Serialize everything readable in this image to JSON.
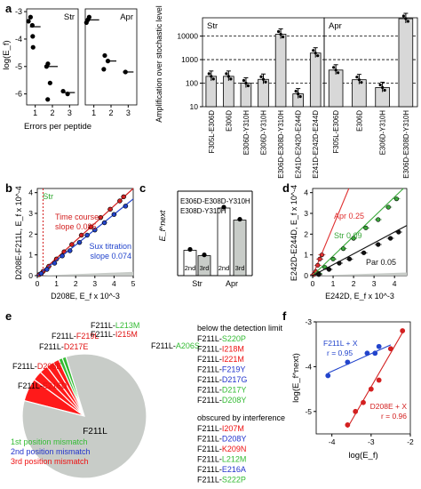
{
  "panel_letters": [
    "a",
    "b",
    "c",
    "d",
    "e",
    "f"
  ],
  "chart_data": [
    {
      "id": "a-left",
      "type": "scatter",
      "ylabel": "log(E_f)",
      "xlabel": "Errors per peptide",
      "subpanels": [
        {
          "label": "Str",
          "xticks": [
            "1",
            "2",
            "3"
          ],
          "points": [
            [
              1,
              -3.2
            ],
            [
              1,
              -3.35
            ],
            [
              1,
              -3.5
            ],
            [
              1,
              -3.9
            ],
            [
              1,
              -4.3
            ],
            [
              2,
              -4.9
            ],
            [
              2,
              -5.0
            ],
            [
              2,
              -5.6
            ],
            [
              2,
              -6.2
            ],
            [
              3,
              -5.9
            ],
            [
              3,
              -6.0
            ]
          ],
          "means": [
            [
              1,
              -3.55
            ],
            [
              2,
              -5.0
            ],
            [
              3,
              -5.95
            ]
          ]
        },
        {
          "label": "Apr",
          "xticks": [
            "1",
            "2",
            "3"
          ],
          "points": [
            [
              1,
              -3.2
            ],
            [
              1,
              -3.3
            ],
            [
              1,
              -3.4
            ],
            [
              2,
              -4.6
            ],
            [
              2,
              -4.8
            ],
            [
              2,
              -5.1
            ],
            [
              3,
              -5.2
            ]
          ],
          "means": [
            [
              1,
              -3.3
            ],
            [
              2,
              -4.8
            ],
            [
              3,
              -5.2
            ]
          ]
        }
      ],
      "ylim": [
        -6.4,
        -2.9
      ],
      "yticks": [
        "-3",
        "-4",
        "-5",
        "-6"
      ]
    },
    {
      "id": "a-right",
      "type": "bar",
      "scale": "log",
      "ylabel": "Amplification over stochastic level",
      "ylim": [
        10,
        60000
      ],
      "yticks": [
        "10",
        "100",
        "1000",
        "10000"
      ],
      "dashed_lines": [
        100,
        1000,
        10000
      ],
      "groups": [
        {
          "label": "Str",
          "categories": [
            "F305L-E306D",
            "E306D",
            "E306D-Y310H",
            "E306D-Y310H",
            "E306D-E308D-Y310H",
            "E241D-E242D-E244D",
            "E241D-E242D-E244D"
          ],
          "values": [
            195,
            195,
            100,
            145,
            12000,
            35,
            1900
          ]
        },
        {
          "label": "Apr",
          "categories": [
            "F305L-E306D",
            "E306D",
            "E306D-Y310H",
            "E306D-E308D-Y310H"
          ],
          "values": [
            360,
            140,
            65,
            55000
          ]
        }
      ],
      "xticks": [
        "F305L-E306D",
        "E306D",
        "E306D-Y310H",
        "E306D-Y310H",
        "E306D-E308D-Y310H",
        "E241D-E242D-E244D",
        "E241D-E242D-E244D",
        "F305L-E306D",
        "E306D",
        "E306D-Y310H",
        "E306D-E308D-Y310H"
      ]
    },
    {
      "id": "b",
      "type": "scatter",
      "xlabel": "D208E, E_f x 10^-3",
      "ylabel": "D208E-F211L, E_f x 10^-4",
      "xlim": [
        0,
        5
      ],
      "ylim": [
        0,
        4.2
      ],
      "xticks": [
        "0",
        "1",
        "2",
        "3",
        "4",
        "5"
      ],
      "yticks": [
        "0",
        "1",
        "2",
        "3",
        "4"
      ],
      "label": "Str",
      "series": [
        {
          "name": "Time course",
          "annotation": "slope 0.085",
          "color": "#d32020",
          "points": [
            [
              0.1,
              0.05
            ],
            [
              0.3,
              0.2
            ],
            [
              0.6,
              0.45
            ],
            [
              1.0,
              0.8
            ],
            [
              1.4,
              1.15
            ],
            [
              1.8,
              1.5
            ],
            [
              2.3,
              1.95
            ],
            [
              2.8,
              2.35
            ],
            [
              3.3,
              2.8
            ],
            [
              3.8,
              3.2
            ],
            [
              4.3,
              3.6
            ],
            [
              4.5,
              3.8
            ]
          ]
        },
        {
          "name": "Sux titration",
          "annotation": "slope 0.074",
          "color": "#2244cc",
          "points": [
            [
              0.2,
              0.1
            ],
            [
              0.5,
              0.3
            ],
            [
              0.9,
              0.6
            ],
            [
              1.3,
              0.95
            ],
            [
              1.7,
              1.2
            ],
            [
              2.2,
              1.6
            ],
            [
              2.6,
              1.95
            ],
            [
              3.0,
              2.2
            ],
            [
              3.5,
              2.55
            ],
            [
              4.0,
              2.95
            ],
            [
              4.6,
              3.35
            ]
          ]
        }
      ],
      "vline": 0.3
    },
    {
      "id": "c",
      "type": "bar",
      "ylabel": "E_f^next",
      "groups": [
        {
          "label": "Str",
          "values": [
            0.042,
            0.033
          ]
        },
        {
          "label": "Apr",
          "values": [
            0.112,
            0.092
          ]
        }
      ],
      "bar_labels": [
        "2nd",
        "3rd"
      ],
      "annotation": [
        "E306D-E308D-Y310H",
        "E308D-Y310H"
      ],
      "ylim": [
        0,
        0.14
      ]
    },
    {
      "id": "d",
      "type": "scatter",
      "xlabel": "E242D, E_f x 10^-3",
      "ylabel": "E242D-E244D, E_f x 10^-4",
      "xlim": [
        0,
        4.6
      ],
      "ylim": [
        0,
        4.2
      ],
      "xticks": [
        "0",
        "1",
        "2",
        "3",
        "4"
      ],
      "yticks": [
        "0",
        "1",
        "2",
        "3",
        "4"
      ],
      "series": [
        {
          "name": "Apr",
          "annotation": "0.25",
          "color": "#e03030",
          "points": [
            [
              0.05,
              0.05
            ],
            [
              0.15,
              0.2
            ],
            [
              0.25,
              0.5
            ],
            [
              0.35,
              0.8
            ],
            [
              0.45,
              1.0
            ]
          ]
        },
        {
          "name": "Str",
          "annotation": "0.09",
          "color": "#3aa83a",
          "points": [
            [
              0.3,
              0.1
            ],
            [
              0.6,
              0.4
            ],
            [
              1.0,
              0.8
            ],
            [
              1.5,
              1.3
            ],
            [
              2.0,
              1.8
            ],
            [
              2.6,
              2.3
            ],
            [
              3.2,
              2.7
            ],
            [
              3.7,
              3.3
            ],
            [
              4.1,
              3.7
            ]
          ]
        },
        {
          "name": "Par",
          "annotation": "0.05",
          "color": "#111111",
          "points": [
            [
              0.3,
              0.05
            ],
            [
              0.8,
              0.3
            ],
            [
              1.3,
              0.6
            ],
            [
              1.8,
              0.8
            ],
            [
              2.5,
              1.1
            ],
            [
              3.2,
              1.5
            ],
            [
              3.8,
              1.8
            ],
            [
              4.2,
              2.1
            ]
          ]
        }
      ]
    },
    {
      "id": "e",
      "type": "pie",
      "center_label": "F211L",
      "slices": [
        {
          "label": "F211L-E216D",
          "value": 6.0,
          "color": "#ff1a1a"
        },
        {
          "label": "F211L-D208E",
          "value": 2.5,
          "color": "#ff1a1a"
        },
        {
          "label": "F211L-D217E",
          "value": 2.2,
          "color": "#ff1a1a"
        },
        {
          "label": "F211L-F219L",
          "value": 2.0,
          "color": "#ff1a1a"
        },
        {
          "label": "F211L-I215M",
          "value": 1.5,
          "color": "#ff1a1a"
        },
        {
          "label": "F211L-L213M",
          "value": 1.0,
          "color": "#33bb33"
        },
        {
          "label": "F211L-A206S",
          "value": 1.0,
          "color": "#33bb33"
        },
        {
          "label": "F211L",
          "value": 83.8,
          "color": "#c8ccc8"
        }
      ],
      "legend": [
        {
          "text": "1st position mismatch",
          "color": "#33bb33"
        },
        {
          "text": "2nd position mismatch",
          "color": "#2233cc"
        },
        {
          "text": "3rd position mismatch",
          "color": "#ee1111"
        }
      ],
      "below_title": "below the detection limit",
      "below_list": [
        {
          "text": "F211L-S220P",
          "color": "#33bb33"
        },
        {
          "text": "F211L-I218M",
          "color": "#ee1111"
        },
        {
          "text": "F211L-I221M",
          "color": "#ee1111"
        },
        {
          "text": "F211L-F219Y",
          "color": "#2233cc"
        },
        {
          "text": "F211L-D217G",
          "color": "#2233cc"
        },
        {
          "text": "F211L-D217Y",
          "color": "#33bb33"
        },
        {
          "text": "F211L-D208Y",
          "color": "#33bb33"
        }
      ],
      "interference_title": "obscured by interference",
      "interference_list": [
        {
          "text": "F211L-I207M",
          "color": "#ee1111"
        },
        {
          "text": "F211L-D208Y",
          "color": "#2233cc"
        },
        {
          "text": "F211L-K209N",
          "color": "#ee1111"
        },
        {
          "text": "F211L-L212M",
          "color": "#33bb33"
        },
        {
          "text": "F211L-E216A",
          "color": "#2233cc"
        },
        {
          "text": "F211L-S222P",
          "color": "#33bb33"
        }
      ]
    },
    {
      "id": "f",
      "type": "scatter",
      "xlabel": "log(E_f)",
      "ylabel": "log(E_f^next)",
      "xlim": [
        -4.4,
        -2.0
      ],
      "ylim": [
        -5.5,
        -3.0
      ],
      "xticks": [
        "-4",
        "-3",
        "-2"
      ],
      "yticks": [
        "-3",
        "-4",
        "-5"
      ],
      "series": [
        {
          "name": "F211L + X",
          "annotation": "r = 0.95",
          "color": "#2244cc",
          "points": [
            [
              -4.1,
              -4.2
            ],
            [
              -3.6,
              -3.9
            ],
            [
              -3.1,
              -3.7
            ],
            [
              -2.9,
              -3.7
            ],
            [
              -2.5,
              -3.6
            ],
            [
              -2.8,
              -3.55
            ]
          ]
        },
        {
          "name": "D208E + X",
          "annotation": "r = 0.96",
          "color": "#d32020",
          "points": [
            [
              -3.6,
              -5.3
            ],
            [
              -3.4,
              -5.0
            ],
            [
              -3.2,
              -4.8
            ],
            [
              -3.0,
              -4.5
            ],
            [
              -2.8,
              -4.3
            ],
            [
              -2.5,
              -3.6
            ],
            [
              -2.2,
              -3.2
            ]
          ]
        }
      ]
    }
  ]
}
